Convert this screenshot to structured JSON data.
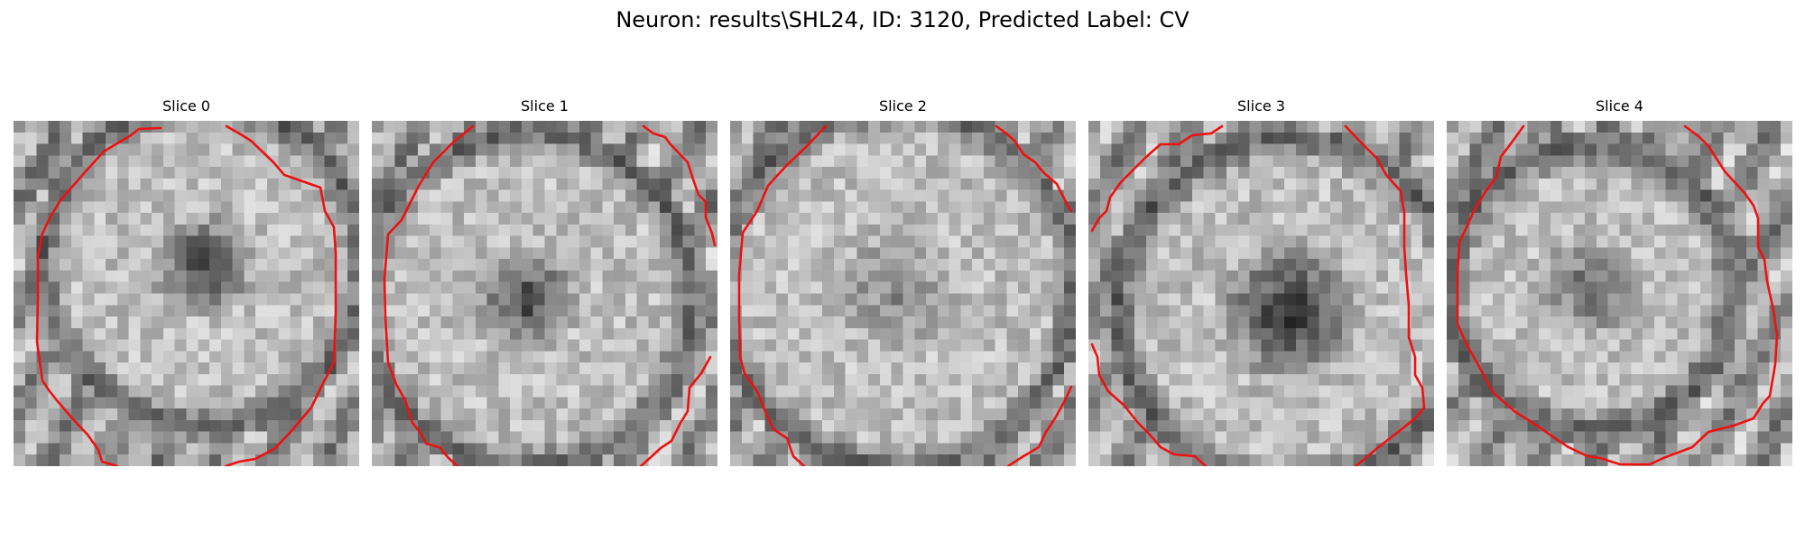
{
  "figure": {
    "title": "Neuron: results\\SHL24, ID: 3120, Predicted Label: CV"
  },
  "contour_color": "#ee1111",
  "slices": [
    {
      "title": "Slice 0"
    },
    {
      "title": "Slice 1"
    },
    {
      "title": "Slice 2"
    },
    {
      "title": "Slice 3"
    },
    {
      "title": "Slice 4"
    }
  ]
}
